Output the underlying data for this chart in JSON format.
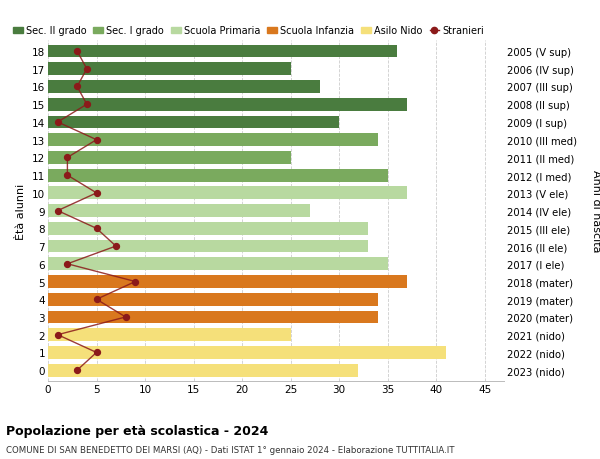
{
  "ages": [
    18,
    17,
    16,
    15,
    14,
    13,
    12,
    11,
    10,
    9,
    8,
    7,
    6,
    5,
    4,
    3,
    2,
    1,
    0
  ],
  "years": [
    "2005 (V sup)",
    "2006 (IV sup)",
    "2007 (III sup)",
    "2008 (II sup)",
    "2009 (I sup)",
    "2010 (III med)",
    "2011 (II med)",
    "2012 (I med)",
    "2013 (V ele)",
    "2014 (IV ele)",
    "2015 (III ele)",
    "2016 (II ele)",
    "2017 (I ele)",
    "2018 (mater)",
    "2019 (mater)",
    "2020 (mater)",
    "2021 (nido)",
    "2022 (nido)",
    "2023 (nido)"
  ],
  "bar_values": [
    36,
    25,
    28,
    37,
    30,
    34,
    25,
    35,
    37,
    27,
    33,
    33,
    35,
    37,
    34,
    34,
    25,
    41,
    32
  ],
  "bar_colors": [
    "#4a7c3f",
    "#4a7c3f",
    "#4a7c3f",
    "#4a7c3f",
    "#4a7c3f",
    "#7aaa5e",
    "#7aaa5e",
    "#7aaa5e",
    "#b8d9a0",
    "#b8d9a0",
    "#b8d9a0",
    "#b8d9a0",
    "#b8d9a0",
    "#d9781e",
    "#d9781e",
    "#d9781e",
    "#f5e07a",
    "#f5e07a",
    "#f5e07a"
  ],
  "stranieri_values": [
    3,
    4,
    3,
    4,
    1,
    5,
    2,
    2,
    5,
    1,
    5,
    7,
    2,
    9,
    5,
    8,
    1,
    5,
    3
  ],
  "legend_labels": [
    "Sec. II grado",
    "Sec. I grado",
    "Scuola Primaria",
    "Scuola Infanzia",
    "Asilo Nido",
    "Stranieri"
  ],
  "legend_colors": [
    "#4a7c3f",
    "#7aaa5e",
    "#b8d9a0",
    "#d9781e",
    "#f5e07a",
    "#8b1a1a"
  ],
  "title": "Popolazione per età scolastica - 2024",
  "subtitle": "COMUNE DI SAN BENEDETTO DEI MARSI (AQ) - Dati ISTAT 1° gennaio 2024 - Elaborazione TUTTITALIA.IT",
  "ylabel_left": "Ètà alunni",
  "ylabel_right": "Anni di nascita",
  "xlim": [
    0,
    47
  ],
  "ylim_low": -0.6,
  "ylim_high": 18.6,
  "bg_color": "#ffffff",
  "grid_color": "#cccccc",
  "bar_height": 0.72
}
